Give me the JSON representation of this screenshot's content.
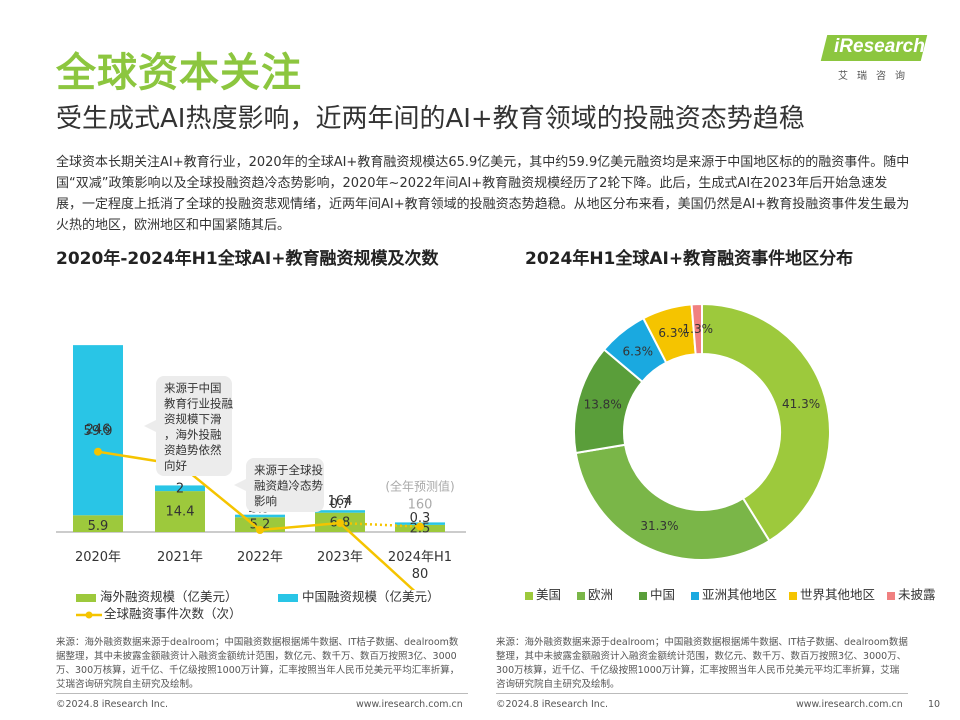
{
  "page": {
    "title": "全球资本关注",
    "subtitle": "受生成式AI热度影响，近两年间的AI+教育领域的投融资态势趋稳",
    "body": "全球资本长期关注AI+教育行业，2020年的全球AI+教育融资规模达65.9亿美元，其中约59.9亿美元融资均是来源于中国地区标的的融资事件。随中国“双减”政策影响以及全球投融资趋冷态势影响，2020年~2022年间AI+教育融资规模经历了2轮下降。此后，生成式AI在2023年后开始急速发展，一定程度上抵消了全球的投融资悲观情绪，近两年间AI+教育领域的投融资态势趋稳。从地区分布来看，美国仍然是AI+教育投融资事件发生最为火热的地区，欧洲地区和中国紧随其后。",
    "page_number": "10"
  },
  "logo": {
    "text": "iResearch",
    "sub": "艾瑞咨询"
  },
  "colors": {
    "accent": "#8cc63f",
    "china": "#29c5e6",
    "line": "#f5c400",
    "usa": "#9dc93c",
    "europe": "#7ab648",
    "china_pie": "#5a9e3a",
    "asia": "#1aa9e0",
    "world": "#f5c400",
    "undisclosed": "#f08080"
  },
  "chart_data": [
    {
      "type": "bar",
      "title": "2020年-2024年H1全球AI+教育融资规模及次数",
      "categories": [
        "2020年",
        "2021年",
        "2022年",
        "2023年",
        "2024年H1"
      ],
      "series": [
        {
          "name": "海外融资规模（亿美元）",
          "values": [
            5.9,
            14.4,
            5.2,
            6.8,
            2.5
          ]
        },
        {
          "name": "中国融资规模（亿美元）",
          "values": [
            59.9,
            2.0,
            0.9,
            0.7,
            0.3
          ]
        },
        {
          "name": "全球融资事件次数（次）",
          "values": [
            246,
            231,
            156,
            164,
            80
          ]
        }
      ],
      "forecast": {
        "label": "(全年预测值)",
        "value": 160
      },
      "annotations": [
        "来源于中国教育行业投融资规模下滑，海外投融资趋势依然向好",
        "来源于全球投融资趋冷态势影响"
      ]
    },
    {
      "type": "pie",
      "title": "2024年H1全球AI+教育融资事件地区分布",
      "labels": [
        "美国",
        "欧洲",
        "中国",
        "亚洲其他地区",
        "世界其他地区",
        "未披露"
      ],
      "values": [
        41.3,
        31.3,
        13.8,
        6.3,
        6.3,
        1.3
      ],
      "value_labels": [
        "41.3%",
        "31.3%",
        "13.8%",
        "6.3%",
        "6.3%",
        "1.3%"
      ]
    }
  ],
  "sources": {
    "left": "来源：海外融资数据来源于dealroom；中国融资数据根据烯牛数据、IT桔子数据、dealroom数据整理，其中未披露金额融资计入融资金额统计范围，数亿元、数千万、数百万按照3亿、3000万、300万核算，近千亿、千亿级按照1000万计算，汇率按照当年人民币兑美元平均汇率折算，艾瑞咨询研究院自主研究及绘制。",
    "right": "来源：海外融资数据来源于dealroom；中国融资数据根据烯牛数据、IT桔子数据、dealroom数据整理，其中未披露金额融资计入融资金额统计范围，数亿元、数千万、数百万按照3亿、3000万、300万核算，近千亿、千亿级按照1000万计算，汇率按照当年人民币兑美元平均汇率折算，艾瑞咨询研究院自主研究及绘制。"
  },
  "footer": {
    "left_copyright": "©2024.8 iResearch Inc.",
    "left_url": "www.iresearch.com.cn",
    "right_copyright": "©2024.8 iResearch Inc.",
    "right_url": "www.iresearch.com.cn"
  }
}
